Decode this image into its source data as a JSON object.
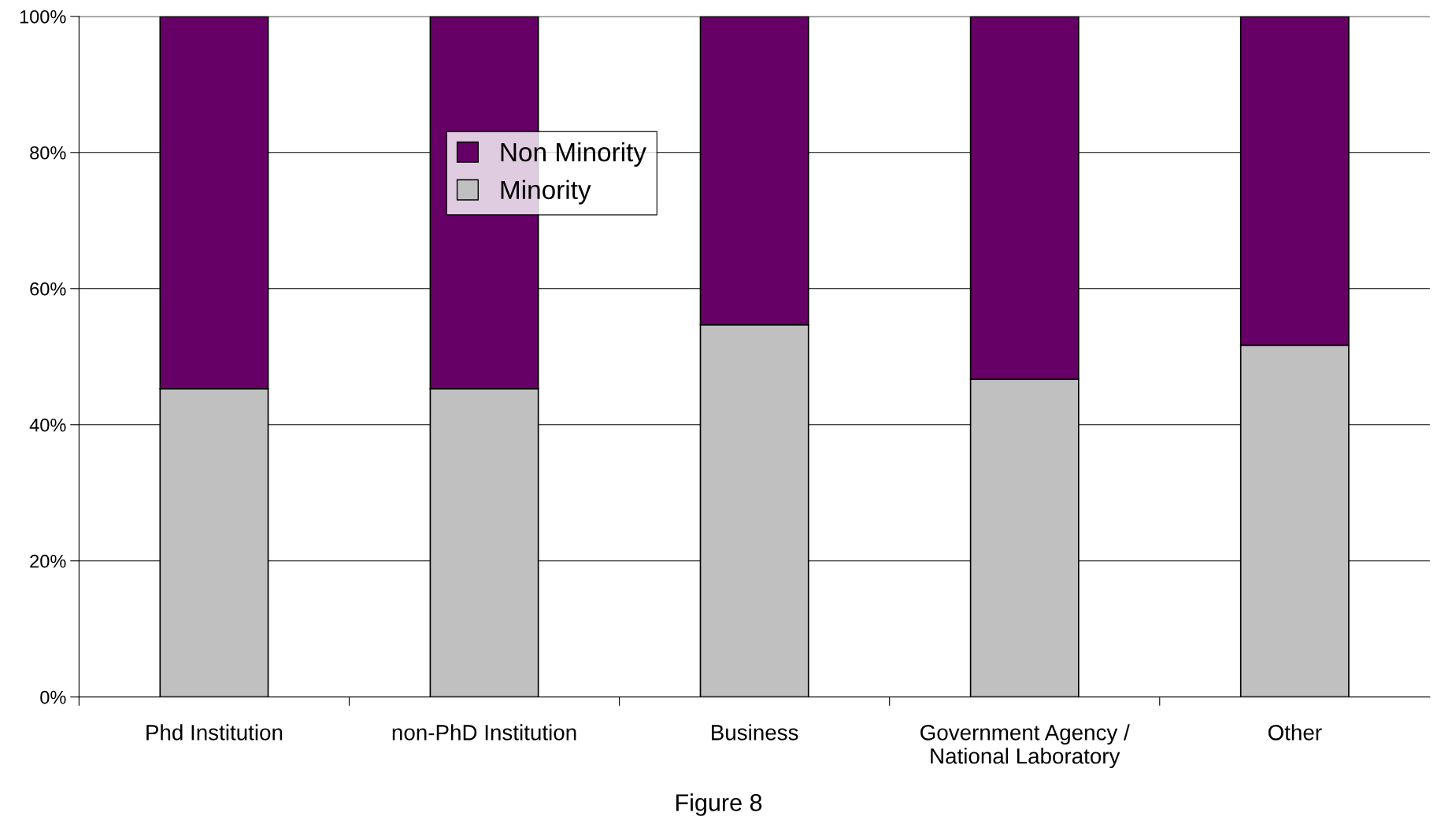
{
  "chart_data": {
    "type": "bar",
    "stacked": true,
    "categories": [
      "Phd Institution",
      "non-PhD Institution",
      "Business",
      "Government Agency /\nNational Laboratory",
      "Other"
    ],
    "series": [
      {
        "name": "Minority",
        "color": "#c0c0c0",
        "values": [
          45.3,
          45.3,
          54.7,
          46.7,
          51.7
        ]
      },
      {
        "name": "Non Minority",
        "color": "#660066",
        "values": [
          54.7,
          54.7,
          45.3,
          53.3,
          48.3
        ]
      }
    ],
    "ylim": [
      0,
      100
    ],
    "yticks": [
      {
        "value": 0,
        "label": "0%"
      },
      {
        "value": 20,
        "label": "20%"
      },
      {
        "value": 40,
        "label": "40%"
      },
      {
        "value": 60,
        "label": "60%"
      },
      {
        "value": 80,
        "label": "80%"
      },
      {
        "value": 100,
        "label": "100%"
      }
    ],
    "grid": "y",
    "legend": "top",
    "annotations": [
      "Figure 8"
    ]
  }
}
